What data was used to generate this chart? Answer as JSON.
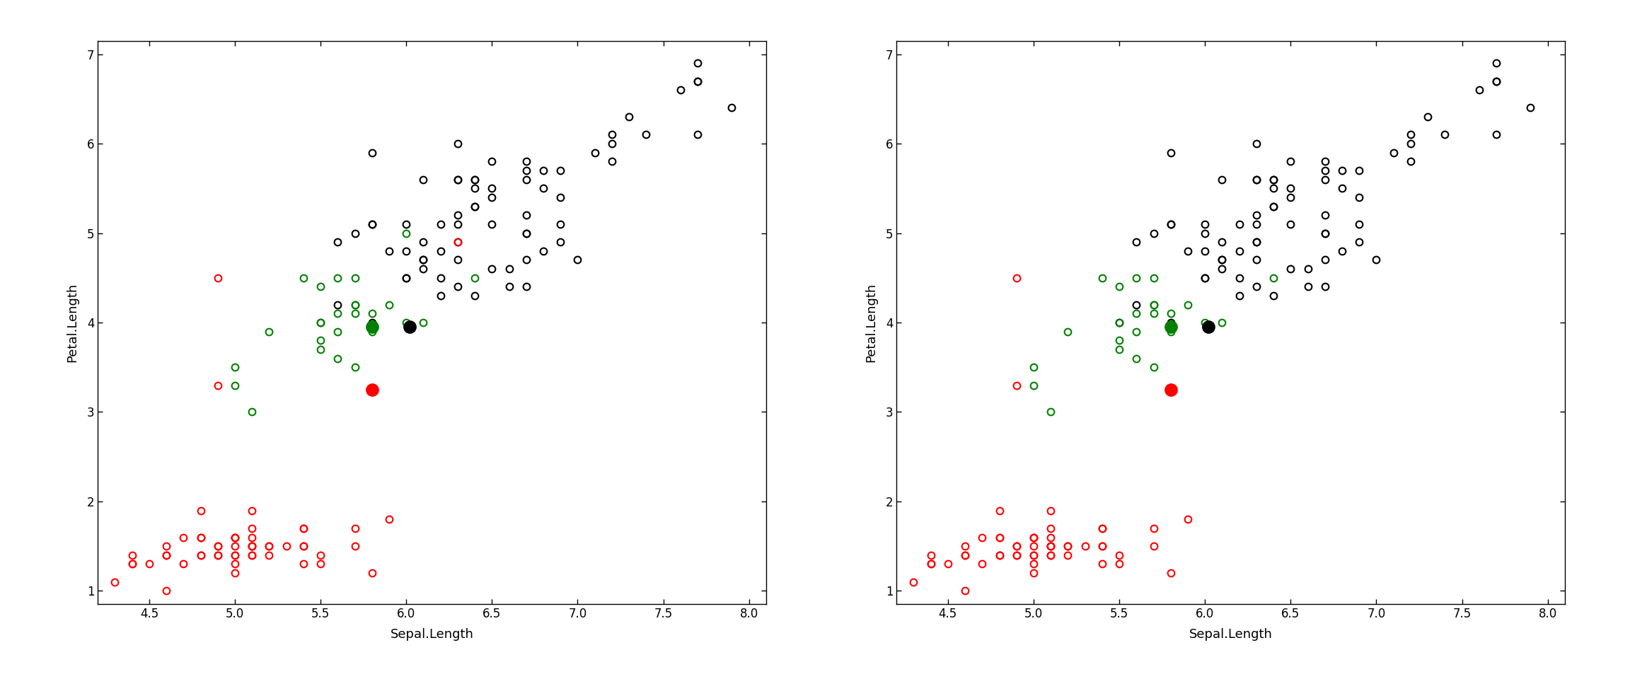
{
  "sepal_length": [
    5.1,
    4.9,
    4.7,
    4.6,
    5.0,
    5.4,
    4.6,
    5.0,
    4.4,
    4.9,
    5.4,
    4.8,
    4.8,
    4.3,
    5.8,
    5.7,
    5.4,
    5.1,
    5.7,
    5.1,
    5.4,
    5.1,
    4.6,
    5.1,
    4.8,
    5.0,
    5.0,
    5.2,
    5.2,
    4.7,
    4.8,
    5.4,
    5.2,
    5.5,
    4.9,
    5.0,
    5.5,
    4.9,
    4.4,
    5.1,
    5.0,
    4.5,
    4.4,
    5.0,
    5.1,
    4.8,
    5.1,
    4.6,
    5.3,
    5.0,
    7.0,
    6.4,
    6.9,
    5.5,
    6.5,
    5.7,
    6.3,
    4.9,
    6.6,
    5.2,
    5.0,
    5.9,
    6.0,
    6.1,
    5.6,
    6.7,
    5.6,
    5.8,
    6.2,
    5.6,
    5.9,
    6.1,
    6.3,
    6.1,
    6.4,
    6.6,
    6.8,
    6.7,
    6.0,
    5.7,
    5.5,
    5.5,
    5.8,
    6.0,
    5.4,
    6.0,
    6.7,
    6.3,
    5.6,
    5.5,
    5.5,
    6.1,
    5.8,
    5.0,
    5.6,
    5.7,
    5.7,
    6.2,
    5.1,
    5.7,
    6.3,
    5.8,
    7.1,
    6.3,
    6.5,
    7.6,
    4.9,
    7.3,
    6.7,
    7.2,
    6.5,
    6.4,
    6.8,
    5.7,
    5.8,
    6.4,
    6.5,
    7.7,
    7.7,
    6.0,
    6.9,
    5.6,
    7.7,
    6.3,
    6.7,
    7.2,
    6.2,
    6.1,
    6.4,
    7.2,
    7.4,
    7.9,
    6.4,
    6.3,
    6.1,
    7.7,
    6.3,
    6.4,
    6.0,
    6.9,
    6.7,
    6.9,
    5.8,
    6.8,
    6.7,
    6.7,
    6.3,
    6.5,
    6.2,
    5.9
  ],
  "petal_length": [
    1.4,
    1.4,
    1.3,
    1.5,
    1.4,
    1.7,
    1.4,
    1.5,
    1.4,
    1.5,
    1.5,
    1.6,
    1.4,
    1.1,
    1.2,
    1.5,
    1.3,
    1.4,
    1.7,
    1.5,
    1.7,
    1.5,
    1.0,
    1.7,
    1.9,
    1.6,
    1.6,
    1.5,
    1.4,
    1.6,
    1.6,
    1.5,
    1.5,
    1.4,
    1.5,
    1.2,
    1.3,
    1.4,
    1.3,
    1.5,
    1.3,
    1.3,
    1.3,
    1.6,
    1.9,
    1.4,
    1.6,
    1.4,
    1.5,
    1.4,
    4.7,
    4.5,
    4.9,
    4.0,
    4.6,
    4.5,
    4.7,
    3.3,
    4.6,
    3.9,
    3.5,
    4.2,
    4.0,
    4.7,
    3.6,
    4.4,
    4.5,
    4.1,
    4.5,
    3.9,
    4.8,
    4.0,
    4.9,
    4.7,
    4.3,
    4.4,
    4.8,
    5.0,
    4.5,
    3.5,
    3.8,
    3.7,
    3.9,
    5.1,
    4.5,
    4.5,
    4.7,
    4.4,
    4.1,
    4.0,
    4.4,
    4.6,
    4.0,
    3.3,
    4.2,
    4.2,
    4.2,
    4.3,
    3.0,
    4.1,
    6.0,
    5.1,
    5.9,
    5.6,
    5.8,
    6.6,
    4.5,
    6.3,
    5.8,
    6.1,
    5.1,
    5.3,
    5.5,
    5.0,
    5.1,
    5.3,
    5.5,
    6.7,
    6.9,
    5.0,
    5.7,
    4.9,
    6.7,
    4.9,
    5.7,
    6.0,
    4.8,
    4.9,
    5.6,
    5.8,
    6.1,
    6.4,
    5.6,
    5.1,
    5.6,
    6.1,
    5.6,
    5.5,
    4.8,
    5.4,
    5.6,
    5.1,
    5.9,
    5.7,
    5.2,
    5.0,
    5.2,
    5.4,
    5.1,
    1.8
  ],
  "left_colors": [
    "red",
    "red",
    "red",
    "red",
    "red",
    "red",
    "red",
    "red",
    "red",
    "red",
    "red",
    "red",
    "red",
    "red",
    "red",
    "red",
    "red",
    "red",
    "red",
    "red",
    "red",
    "red",
    "red",
    "red",
    "red",
    "red",
    "red",
    "red",
    "red",
    "red",
    "red",
    "red",
    "red",
    "red",
    "red",
    "red",
    "red",
    "red",
    "red",
    "red",
    "red",
    "red",
    "red",
    "red",
    "red",
    "red",
    "red",
    "red",
    "red",
    "red",
    "black",
    "green",
    "black",
    "green",
    "black",
    "green",
    "black",
    "red",
    "black",
    "green",
    "green",
    "green",
    "green",
    "black",
    "green",
    "black",
    "green",
    "green",
    "black",
    "green",
    "black",
    "green",
    "black",
    "black",
    "black",
    "black",
    "black",
    "black",
    "black",
    "green",
    "green",
    "green",
    "green",
    "black",
    "green",
    "black",
    "black",
    "black",
    "green",
    "green",
    "green",
    "black",
    "black",
    "green",
    "black",
    "green",
    "green",
    "black",
    "green",
    "green",
    "black",
    "black",
    "black",
    "black",
    "black",
    "black",
    "red",
    "black",
    "black",
    "black",
    "black",
    "black",
    "black",
    "black",
    "black",
    "black",
    "black",
    "black",
    "black",
    "green",
    "black",
    "black",
    "black",
    "red",
    "black",
    "black",
    "black",
    "black",
    "black",
    "black",
    "black",
    "black",
    "black",
    "black",
    "black",
    "black",
    "black",
    "black",
    "black",
    "black",
    "black",
    "black",
    "black",
    "black",
    "black",
    "black",
    "black",
    "black",
    "black",
    "red"
  ],
  "right_colors": [
    "red",
    "red",
    "red",
    "red",
    "red",
    "red",
    "red",
    "red",
    "red",
    "red",
    "red",
    "red",
    "red",
    "red",
    "red",
    "red",
    "red",
    "red",
    "red",
    "red",
    "red",
    "red",
    "red",
    "red",
    "red",
    "red",
    "red",
    "red",
    "red",
    "red",
    "red",
    "red",
    "red",
    "red",
    "red",
    "red",
    "red",
    "red",
    "red",
    "red",
    "red",
    "red",
    "red",
    "red",
    "red",
    "red",
    "red",
    "red",
    "red",
    "red",
    "black",
    "green",
    "black",
    "black",
    "black",
    "green",
    "black",
    "red",
    "black",
    "green",
    "green",
    "green",
    "green",
    "black",
    "green",
    "black",
    "green",
    "green",
    "black",
    "green",
    "black",
    "green",
    "black",
    "black",
    "black",
    "black",
    "black",
    "black",
    "black",
    "green",
    "green",
    "green",
    "green",
    "black",
    "green",
    "black",
    "black",
    "black",
    "green",
    "green",
    "green",
    "black",
    "black",
    "green",
    "black",
    "green",
    "green",
    "black",
    "green",
    "green",
    "black",
    "black",
    "black",
    "black",
    "black",
    "black",
    "red",
    "black",
    "black",
    "black",
    "black",
    "black",
    "black",
    "black",
    "black",
    "black",
    "black",
    "black",
    "black",
    "black",
    "black",
    "black",
    "black",
    "black",
    "black",
    "black",
    "black",
    "black",
    "black",
    "black",
    "black",
    "black",
    "black",
    "black",
    "black",
    "black",
    "black",
    "black",
    "black",
    "black",
    "black",
    "black",
    "black",
    "black",
    "black",
    "black",
    "black",
    "black",
    "black",
    "red"
  ],
  "center_green_x": 5.8,
  "center_green_y": 3.95,
  "center_red_x": 5.8,
  "center_red_y": 3.25,
  "center_black_x": 6.02,
  "center_black_y": 3.95,
  "xlim": [
    4.2,
    8.1
  ],
  "ylim": [
    0.85,
    7.15
  ],
  "xticks": [
    4.5,
    5.0,
    5.5,
    6.0,
    6.5,
    7.0,
    7.5,
    8.0
  ],
  "yticks": [
    1,
    2,
    3,
    4,
    5,
    6,
    7
  ],
  "xlabel": "Sepal.Length",
  "ylabel": "Petal.Length"
}
